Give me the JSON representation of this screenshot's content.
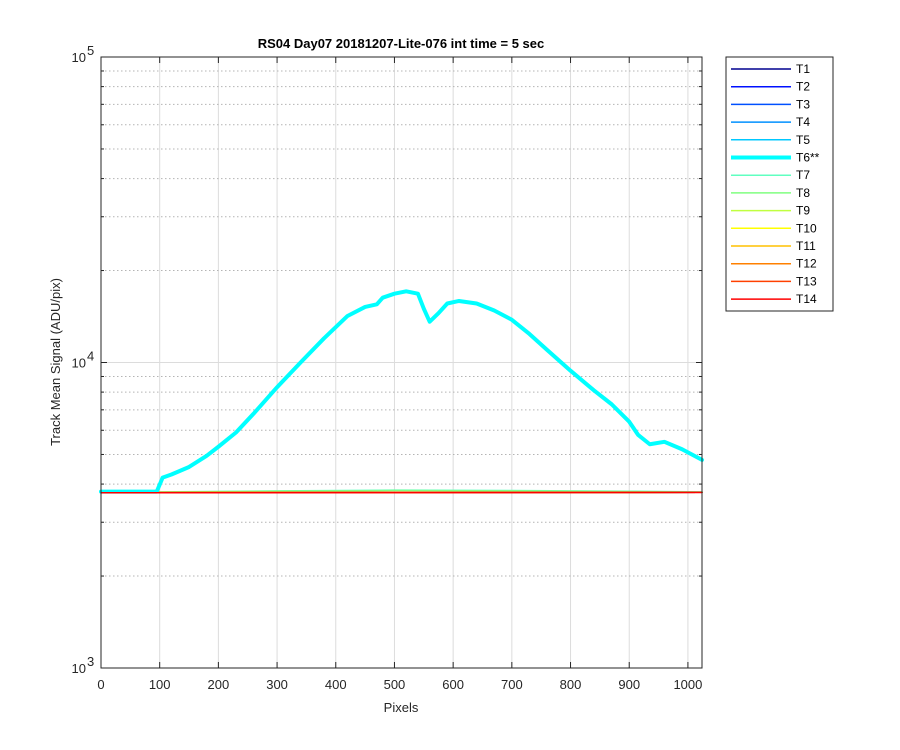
{
  "chart_data": {
    "type": "line",
    "title": "RS04 Day07 20181207-Lite-076 int time = 5 sec",
    "xlabel": "Pixels",
    "ylabel": "Track Mean Signal (ADU/pix)",
    "xlim": [
      0,
      1024
    ],
    "ylim": [
      1000,
      100000
    ],
    "yscale": "log",
    "grid": true,
    "legend_position": "outside-top-right",
    "x_ticks": [
      0,
      100,
      200,
      300,
      400,
      500,
      600,
      700,
      800,
      900,
      1000
    ],
    "x_tick_labels": [
      "0",
      "100",
      "200",
      "300",
      "400",
      "500",
      "600",
      "700",
      "800",
      "900",
      "1000"
    ],
    "y_ticks": [
      1000,
      10000,
      100000
    ],
    "y_tick_labels": [
      {
        "base": "10",
        "exp": "3"
      },
      {
        "base": "10",
        "exp": "4"
      },
      {
        "base": "10",
        "exp": "5"
      }
    ],
    "series": [
      {
        "name": "T1",
        "color": "#00008f",
        "width": 1.5,
        "x": [
          0,
          1024
        ],
        "y": [
          3750,
          3760
        ]
      },
      {
        "name": "T2",
        "color": "#0010ff",
        "width": 1.5,
        "x": [
          0,
          1024
        ],
        "y": [
          3750,
          3760
        ]
      },
      {
        "name": "T3",
        "color": "#0050ff",
        "width": 1.5,
        "x": [
          0,
          1024
        ],
        "y": [
          3750,
          3760
        ]
      },
      {
        "name": "T4",
        "color": "#0090ff",
        "width": 1.5,
        "x": [
          0,
          1024
        ],
        "y": [
          3750,
          3760
        ]
      },
      {
        "name": "T5",
        "color": "#00c8ff",
        "width": 1.5,
        "x": [
          0,
          1024
        ],
        "y": [
          3750,
          3760
        ]
      },
      {
        "name": "T6**",
        "color": "#00ffff",
        "width": 4,
        "x": [
          0,
          95,
          105,
          120,
          150,
          180,
          200,
          230,
          260,
          300,
          340,
          380,
          420,
          450,
          470,
          480,
          500,
          520,
          540,
          550,
          560,
          575,
          590,
          610,
          640,
          670,
          700,
          730,
          760,
          800,
          840,
          870,
          900,
          915,
          935,
          960,
          990,
          1024
        ],
        "y": [
          3780,
          3780,
          4200,
          4300,
          4550,
          4950,
          5300,
          5900,
          6800,
          8300,
          10000,
          12000,
          14200,
          15200,
          15500,
          16300,
          16800,
          17100,
          16800,
          15000,
          13600,
          14500,
          15600,
          15900,
          15600,
          14800,
          13800,
          12400,
          11000,
          9400,
          8100,
          7300,
          6400,
          5800,
          5400,
          5500,
          5200,
          4800
        ]
      },
      {
        "name": "T7",
        "color": "#60ffc0",
        "width": 1.5,
        "x": [
          0,
          100,
          300,
          500,
          700,
          900,
          1024
        ],
        "y": [
          3760,
          3770,
          3800,
          3820,
          3810,
          3790,
          3770
        ]
      },
      {
        "name": "T8",
        "color": "#80ff80",
        "width": 1.5,
        "x": [
          0,
          100,
          300,
          500,
          700,
          900,
          1024
        ],
        "y": [
          3755,
          3765,
          3790,
          3810,
          3800,
          3780,
          3765
        ]
      },
      {
        "name": "T9",
        "color": "#c0ff40",
        "width": 1.5,
        "x": [
          0,
          1024
        ],
        "y": [
          3750,
          3760
        ]
      },
      {
        "name": "T10",
        "color": "#ffff00",
        "width": 1.5,
        "x": [
          0,
          1024
        ],
        "y": [
          3750,
          3760
        ]
      },
      {
        "name": "T11",
        "color": "#ffc000",
        "width": 1.5,
        "x": [
          0,
          1024
        ],
        "y": [
          3750,
          3760
        ]
      },
      {
        "name": "T12",
        "color": "#ff8000",
        "width": 1.5,
        "x": [
          0,
          1024
        ],
        "y": [
          3750,
          3760
        ]
      },
      {
        "name": "T13",
        "color": "#ff4000",
        "width": 1.5,
        "x": [
          0,
          1024
        ],
        "y": [
          3750,
          3760
        ]
      },
      {
        "name": "T14",
        "color": "#ff0000",
        "width": 1.5,
        "x": [
          0,
          1024
        ],
        "y": [
          3745,
          3755
        ]
      }
    ]
  }
}
